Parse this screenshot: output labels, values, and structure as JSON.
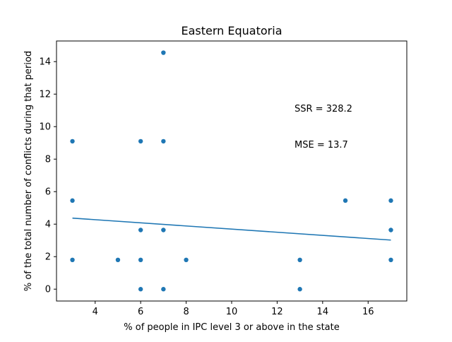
{
  "chart_data": {
    "type": "scatter",
    "title": "Eastern Equatoria",
    "xlabel": "% of people in IPC level 3 or above in the state",
    "ylabel": "% of the total number of conflicts during that period",
    "xlim": [
      2.3,
      17.7
    ],
    "ylim": [
      -0.73,
      15.27
    ],
    "xticks": [
      4,
      6,
      8,
      10,
      12,
      14,
      16
    ],
    "yticks": [
      0,
      2,
      4,
      6,
      8,
      10,
      12,
      14
    ],
    "grid": false,
    "legend": "none",
    "points": [
      {
        "x": 3,
        "y": 9.1
      },
      {
        "x": 3,
        "y": 5.45
      },
      {
        "x": 3,
        "y": 1.8
      },
      {
        "x": 5,
        "y": 1.8
      },
      {
        "x": 6,
        "y": 9.1
      },
      {
        "x": 6,
        "y": 3.64
      },
      {
        "x": 6,
        "y": 1.8
      },
      {
        "x": 6,
        "y": 0
      },
      {
        "x": 7,
        "y": 14.55
      },
      {
        "x": 7,
        "y": 9.1
      },
      {
        "x": 7,
        "y": 3.64
      },
      {
        "x": 7,
        "y": 0
      },
      {
        "x": 8,
        "y": 1.8
      },
      {
        "x": 13,
        "y": 1.8
      },
      {
        "x": 13,
        "y": 0
      },
      {
        "x": 15,
        "y": 5.45
      },
      {
        "x": 17,
        "y": 5.45
      },
      {
        "x": 17,
        "y": 3.64
      },
      {
        "x": 17,
        "y": 1.8
      }
    ],
    "fit_line": {
      "x": [
        3,
        17
      ],
      "y": [
        4.37,
        3.02
      ]
    },
    "annotations": [
      "SSR = 328.2",
      "MSE = 13.7"
    ],
    "colors": {
      "points": "#1f77b4",
      "fit_line": "#1f77b4"
    }
  }
}
